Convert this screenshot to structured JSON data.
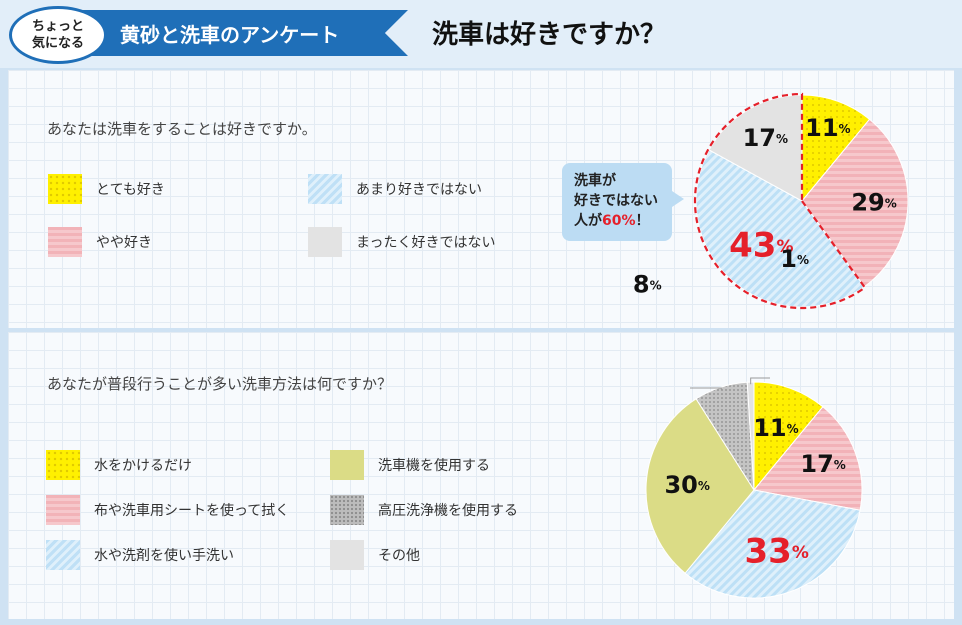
{
  "header": {
    "badge_line1": "ちょっと",
    "badge_line2": "気になる",
    "ribbon": "黄砂と洗車のアンケート",
    "title": "洗車は好きですか？"
  },
  "colors": {
    "accent": "#1f6fb8",
    "yellow": "#fff000",
    "pink": "#f4bcc1",
    "blue": "#c6e4f7",
    "grey": "#e3e3e3",
    "olive": "#dbdc86",
    "dots": "#bcbcbc",
    "highlight_red": "#e5202a"
  },
  "callout": {
    "line1": "洗車が",
    "line2": "好きではない",
    "line3_prefix": "人が",
    "line3_value": "60%",
    "line3_suffix": "！"
  },
  "chart_data": [
    {
      "type": "pie",
      "title": "あなたは洗車をすることは好きですか。",
      "start": "top",
      "direction": "clockwise",
      "slices": [
        {
          "label": "とても好き",
          "value": 11,
          "value_text": "11",
          "color": "#fff000",
          "pattern": "dots"
        },
        {
          "label": "やや好き",
          "value": 29,
          "value_text": "29",
          "color": "#f4bcc1",
          "pattern": "stripes-h"
        },
        {
          "label": "あまり好きではない",
          "value": 43,
          "value_text": "43",
          "color": "#c6e4f7",
          "pattern": "stripes-diag",
          "highlight": true
        },
        {
          "label": "まったく好きではない",
          "value": 17,
          "value_text": "17",
          "color": "#e3e3e3",
          "pattern": "solid"
        }
      ],
      "unit": "%"
    },
    {
      "type": "pie",
      "title": "あなたが普段行うことが多い洗車方法は何ですか？",
      "start": "top",
      "direction": "clockwise",
      "slices": [
        {
          "label": "水をかけるだけ",
          "value": 11,
          "value_text": "11",
          "color": "#fff000",
          "pattern": "dots"
        },
        {
          "label": "布や洗車用シートを使って拭く",
          "value": 17,
          "value_text": "17",
          "color": "#f4bcc1",
          "pattern": "stripes-h"
        },
        {
          "label": "水や洗剤を使い手洗い",
          "value": 33,
          "value_text": "33",
          "color": "#c6e4f7",
          "pattern": "stripes-diag",
          "highlight": true
        },
        {
          "label": "洗車機を使用する",
          "value": 30,
          "value_text": "30",
          "color": "#dbdc86",
          "pattern": "solid"
        },
        {
          "label": "高圧洗浄機を使用する",
          "value": 8,
          "value_text": "8",
          "color": "#bcbcbc",
          "pattern": "dense-dots"
        },
        {
          "label": "その他",
          "value": 1,
          "value_text": "1",
          "color": "#e3e3e3",
          "pattern": "solid"
        }
      ],
      "unit": "%"
    }
  ]
}
